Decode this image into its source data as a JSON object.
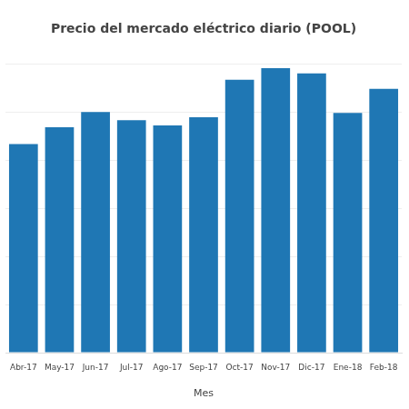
{
  "chart_data": {
    "type": "bar",
    "title": "Precio del mercado eléctrico diario (POOL)",
    "x_label": "Mes",
    "categories": [
      "Abr-17",
      "May-17",
      "Jun-17",
      "Jul-17",
      "Ago-17",
      "Sep-17",
      "Oct-17",
      "Nov-17",
      "Dic-17",
      "Ene-18",
      "Feb-18"
    ],
    "values": [
      43.4,
      46.9,
      50.1,
      48.4,
      47.3,
      49.0,
      56.8,
      59.2,
      58.1,
      49.9,
      54.9
    ],
    "color": "#1f77b4",
    "ylim": [
      0,
      60
    ],
    "yticks": [
      0,
      10,
      20,
      30,
      40,
      50,
      60
    ],
    "grid": true,
    "tick_labels": "x"
  }
}
